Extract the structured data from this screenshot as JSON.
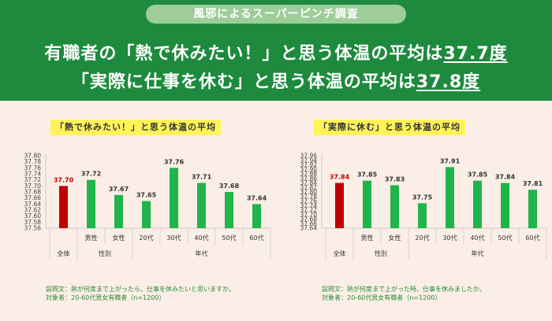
{
  "header": {
    "pill": "風邪によるスーパーピンチ調査",
    "line1_prefix": "有職者の「熱で休みたい！」と思う体温の平均は",
    "line1_value": "37.7度",
    "line2_prefix": "「実際に仕事を休む」と思う体温の平均は",
    "line2_value": "37.8度"
  },
  "colors": {
    "header_bg": "#1e8a3e",
    "total_bar": "#c00000",
    "other_bar": "#1fb54a",
    "title_highlight": "#fff35c",
    "note_text": "#2a8a3a"
  },
  "chart_data": [
    {
      "type": "bar",
      "title": "「熱で休みたい！」と思う体温の平均",
      "categories": [
        "全体",
        "男性",
        "女性",
        "20代",
        "30代",
        "40代",
        "50代",
        "60代"
      ],
      "values": [
        37.7,
        37.72,
        37.67,
        37.65,
        37.76,
        37.71,
        37.68,
        37.64
      ],
      "value_labels": [
        "37.70",
        "37.72",
        "37.67",
        "37.65",
        "37.76",
        "37.71",
        "37.68",
        "37.64"
      ],
      "groups": [
        {
          "label": "性別",
          "members": [
            "男性",
            "女性"
          ]
        },
        {
          "label": "年代",
          "members": [
            "20代",
            "30代",
            "40代",
            "50代",
            "60代"
          ]
        }
      ],
      "ylim": [
        37.56,
        37.8
      ],
      "yticks": [
        "37.56",
        "37.58",
        "37.60",
        "37.62",
        "37.64",
        "37.66",
        "37.68",
        "37.70",
        "37.72",
        "37.74",
        "37.76",
        "37.78",
        "37.80"
      ],
      "note_question": "設問文：熱が何度まで上がったら、仕事を休みたいと思いますか。",
      "note_target": "対象者：20-60代男女有職者（n=1200）"
    },
    {
      "type": "bar",
      "title": "「実際に休む」と思う体温の平均",
      "categories": [
        "全体",
        "男性",
        "女性",
        "20代",
        "30代",
        "40代",
        "50代",
        "60代"
      ],
      "values": [
        37.84,
        37.85,
        37.83,
        37.75,
        37.91,
        37.85,
        37.84,
        37.81
      ],
      "value_labels": [
        "37.84",
        "37.85",
        "37.83",
        "37.75",
        "37.91",
        "37.85",
        "37.84",
        "37.81"
      ],
      "groups": [
        {
          "label": "性別",
          "members": [
            "男性",
            "女性"
          ]
        },
        {
          "label": "年代",
          "members": [
            "20代",
            "30代",
            "40代",
            "50代",
            "60代"
          ]
        }
      ],
      "ylim": [
        37.64,
        37.96
      ],
      "yticks": [
        "37.64",
        "37.66",
        "37.68",
        "37.70",
        "37.72",
        "37.74",
        "37.76",
        "37.78",
        "37.80",
        "37.82",
        "37.84",
        "37.86",
        "37.88",
        "37.90",
        "37.92",
        "37.94",
        "37.96"
      ],
      "note_question": "設問文：熱が何度まで上がった時、仕事を休みましたか。",
      "note_target": "対象者：20-60代男女有職者（n=1200）"
    }
  ]
}
